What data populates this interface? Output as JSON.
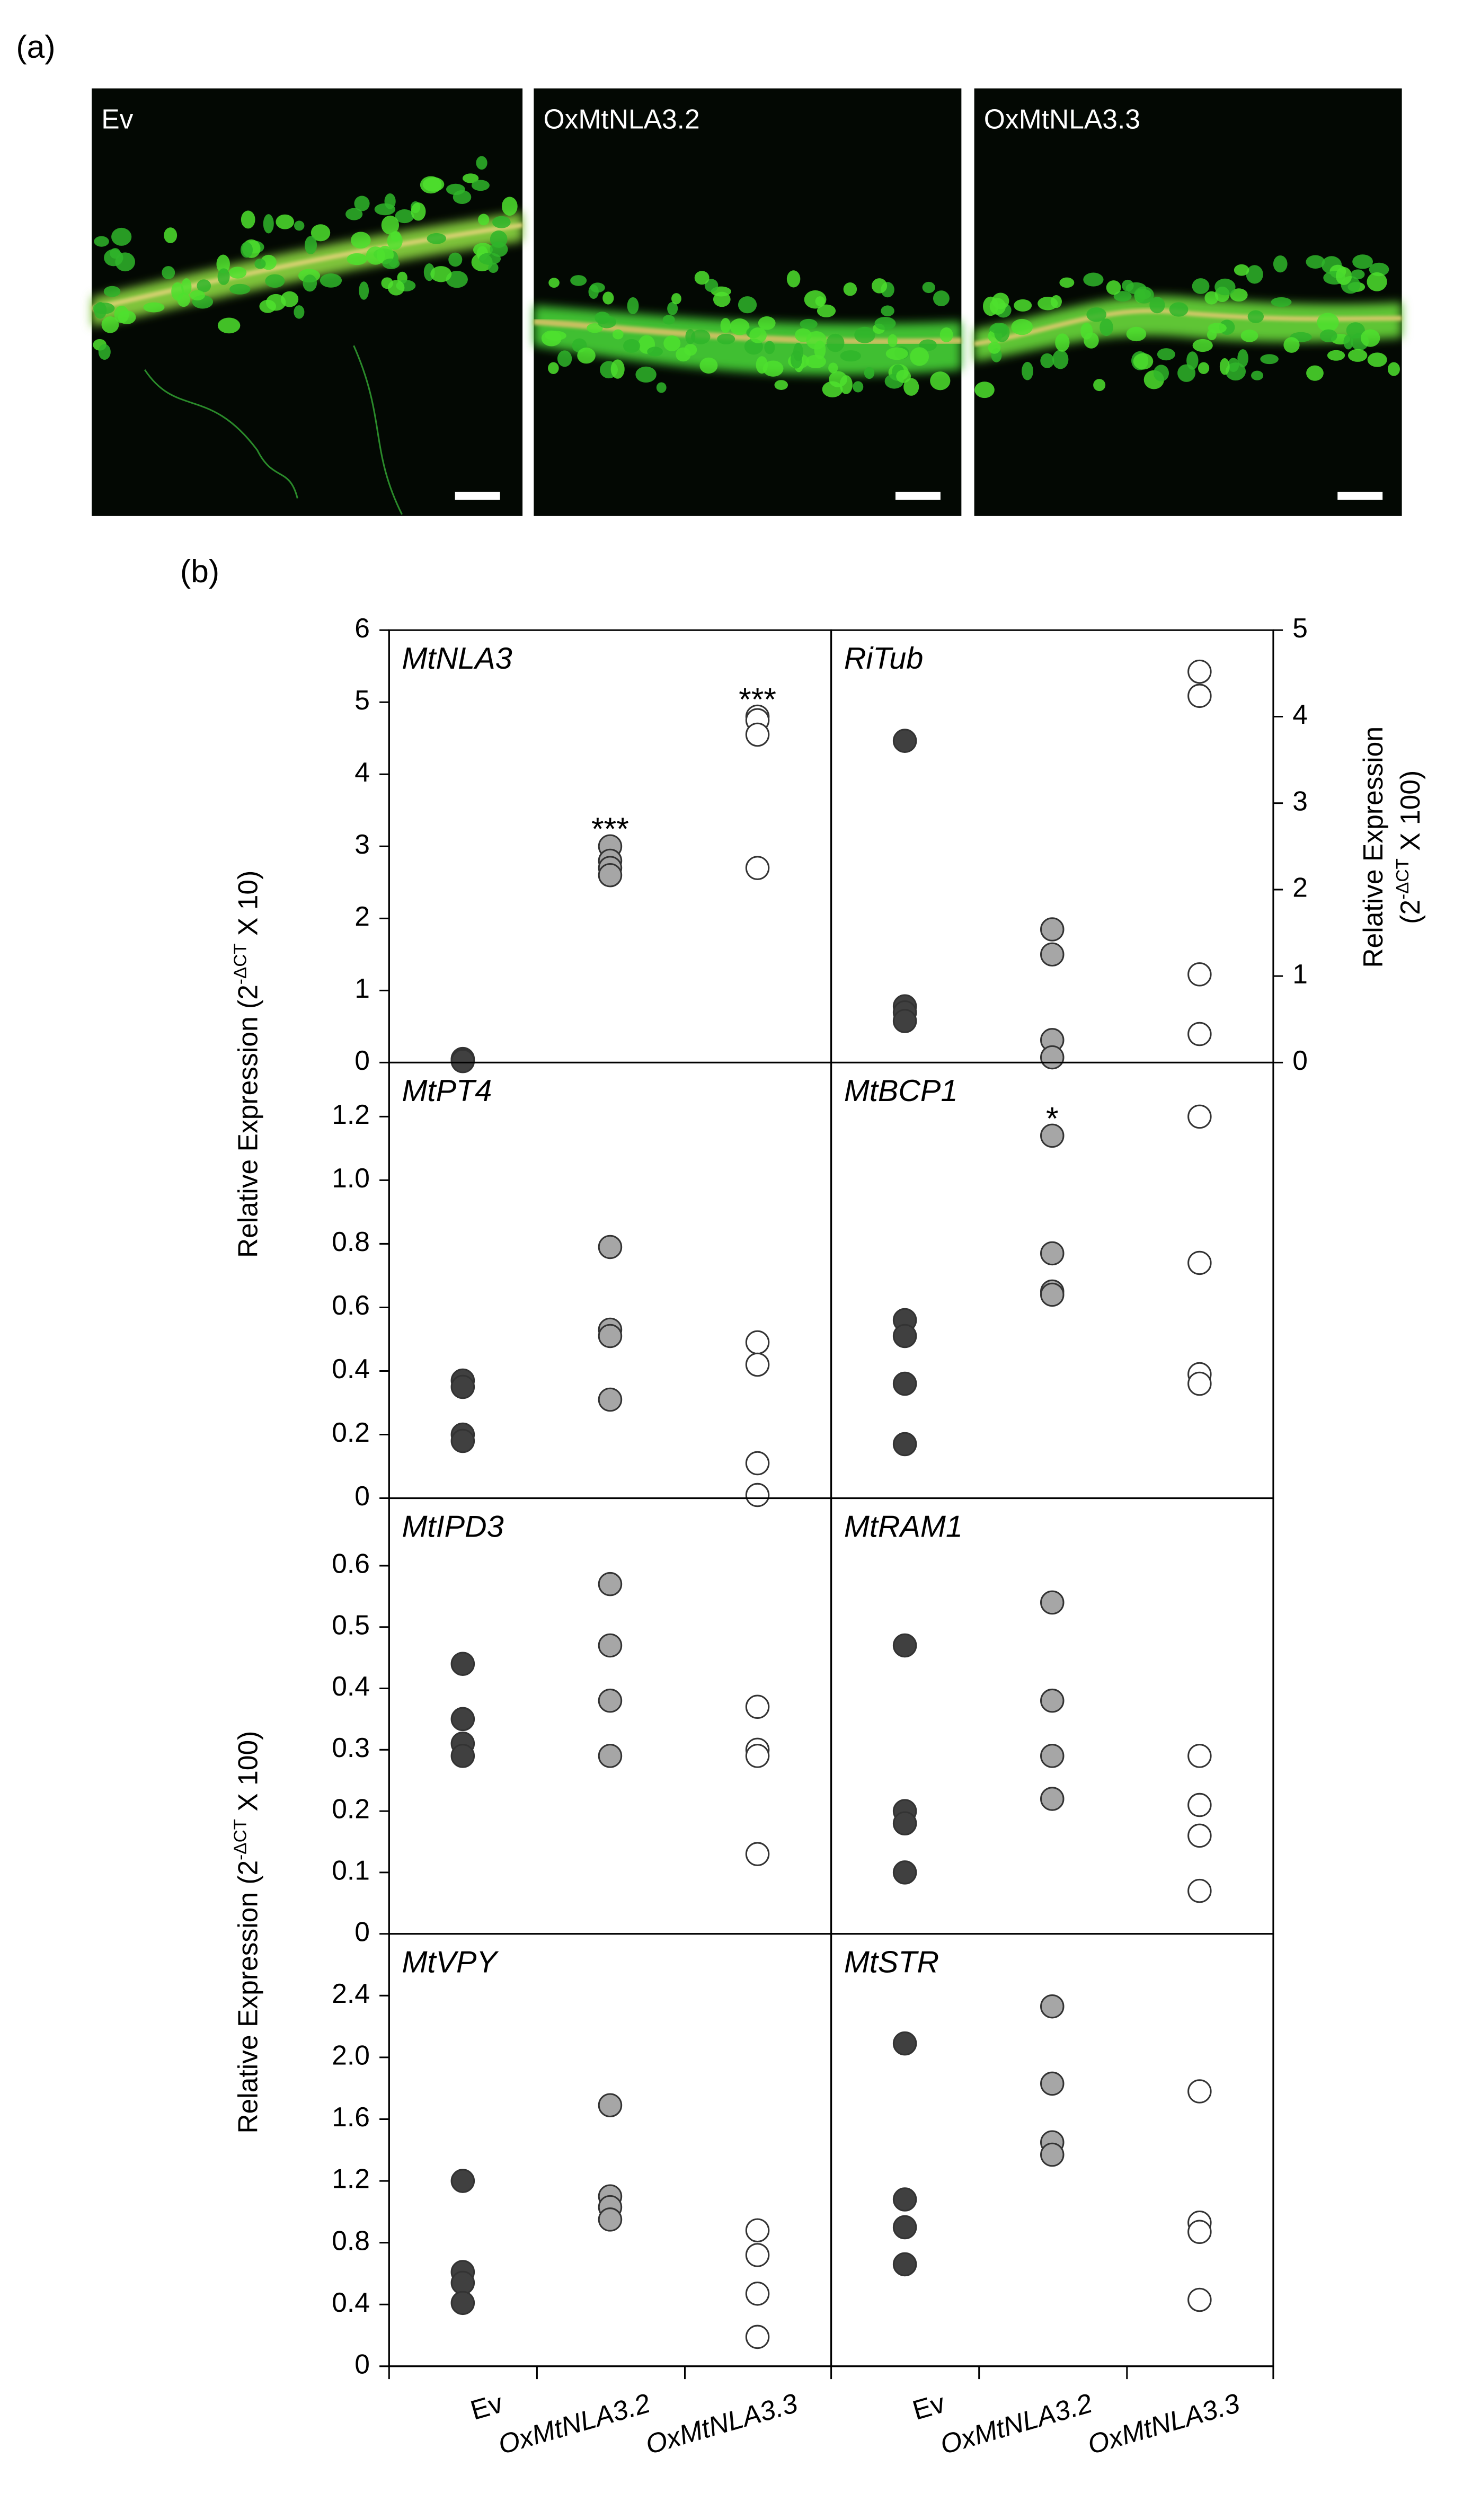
{
  "panel_labels": [
    "(a)",
    "(b)"
  ],
  "images": [
    "Ev",
    "OxMtNLA3.2",
    "OxMtNLA3.3"
  ],
  "y_labels": [
    {
      "text": "Relative Expression (2",
      "sup": "-ΔCT",
      "after": " X 10)"
    },
    {
      "text": "Relative Expression (2",
      "sup": "-ΔCT",
      "after": " X 100)"
    },
    {
      "text": "Relative Expression",
      "line2": "(2",
      "sup": "-ΔCT",
      "after": " X 100)"
    }
  ],
  "chart_data": [
    {
      "type": "scatter",
      "title": "MtNLA3",
      "colors": [
        "#404040",
        "#a6a6a6",
        "#ffffff"
      ],
      "values": [
        [
          0.05,
          0.04,
          0.03,
          0.02
        ],
        [
          3.0,
          2.8,
          2.7,
          2.6
        ],
        [
          4.8,
          4.75,
          4.55,
          2.7
        ]
      ],
      "annotations": [
        null,
        "***",
        "***"
      ],
      "ylim": [
        0,
        6
      ],
      "yticks": [
        0,
        1,
        2,
        3,
        4,
        5,
        6
      ]
    },
    {
      "type": "scatter",
      "title": "RiTub",
      "colors": [
        "#404040",
        "#a6a6a6",
        "#ffffff"
      ],
      "values": [
        [
          3.72,
          0.65,
          0.58,
          0.48
        ],
        [
          1.54,
          1.25,
          0.26,
          0.06
        ],
        [
          4.52,
          4.24,
          1.02,
          0.33
        ]
      ],
      "y2lim": [
        0,
        5
      ],
      "y2ticks": [
        0,
        1,
        2,
        3,
        4,
        5
      ]
    },
    {
      "type": "scatter",
      "title": "MtPT4",
      "colors": [
        "#404040",
        "#a6a6a6",
        "#ffffff"
      ],
      "values": [
        [
          0.37,
          0.35,
          0.2,
          0.18
        ],
        [
          0.79,
          0.53,
          0.51,
          0.31
        ],
        [
          0.49,
          0.42,
          0.11,
          0.01
        ]
      ],
      "ylim": [
        0,
        1.37
      ],
      "yticks": [
        0,
        0.2,
        0.4,
        0.6,
        0.8,
        {
          "value": 1,
          "label": "1.0"
        },
        1.2
      ]
    },
    {
      "type": "scatter",
      "title": "MtBCP1",
      "colors": [
        "#404040",
        "#a6a6a6",
        "#ffffff"
      ],
      "values": [
        [
          0.56,
          0.51,
          0.36,
          0.17
        ],
        [
          1.14,
          0.77,
          0.65,
          0.64
        ],
        [
          1.2,
          0.74,
          0.39,
          0.36
        ]
      ],
      "annotations": [
        null,
        "*",
        null
      ],
      "ylim": [
        0,
        1.37
      ]
    },
    {
      "type": "scatter",
      "title": "MtIPD3",
      "colors": [
        "#404040",
        "#a6a6a6",
        "#ffffff"
      ],
      "values": [
        [
          0.44,
          0.35,
          0.31,
          0.29
        ],
        [
          0.57,
          0.47,
          0.38,
          0.29
        ],
        [
          0.37,
          0.3,
          0.29,
          0.13
        ]
      ],
      "ylim": [
        0,
        0.71
      ],
      "yticks": [
        0,
        0.1,
        0.2,
        0.3,
        0.4,
        0.5,
        0.6
      ]
    },
    {
      "type": "scatter",
      "title": "MtRAM1",
      "colors": [
        "#404040",
        "#a6a6a6",
        "#ffffff"
      ],
      "values": [
        [
          0.47,
          0.2,
          0.18,
          0.1
        ],
        [
          0.54,
          0.38,
          0.29,
          0.22
        ],
        [
          0.29,
          0.21,
          0.16,
          0.07
        ]
      ],
      "ylim": [
        0,
        0.71
      ]
    },
    {
      "type": "scatter",
      "title": "MtVPY",
      "colors": [
        "#404040",
        "#a6a6a6",
        "#ffffff"
      ],
      "categories": [
        "Ev",
        "OxMtNLA3.2",
        "OxMtNLA3.3"
      ],
      "values": [
        [
          1.2,
          0.61,
          0.54,
          0.41
        ],
        [
          1.69,
          1.1,
          1.03,
          0.95
        ],
        [
          0.88,
          0.72,
          0.47,
          0.19
        ]
      ],
      "ylim": [
        0,
        2.8
      ],
      "yticks": [
        0,
        0.4,
        0.8,
        1.2,
        1.6,
        {
          "value": 2,
          "label": "2.0"
        },
        2.4
      ]
    },
    {
      "type": "scatter",
      "title": "MtSTR",
      "colors": [
        "#404040",
        "#a6a6a6",
        "#ffffff"
      ],
      "categories": [
        "Ev",
        "OxMtNLA3.2",
        "OxMtNLA3.3"
      ],
      "values": [
        [
          2.09,
          1.08,
          0.9,
          0.66
        ],
        [
          2.33,
          1.83,
          1.45,
          1.37
        ],
        [
          1.78,
          0.93,
          0.87,
          0.43
        ]
      ],
      "ylim": [
        0,
        2.8
      ]
    }
  ]
}
